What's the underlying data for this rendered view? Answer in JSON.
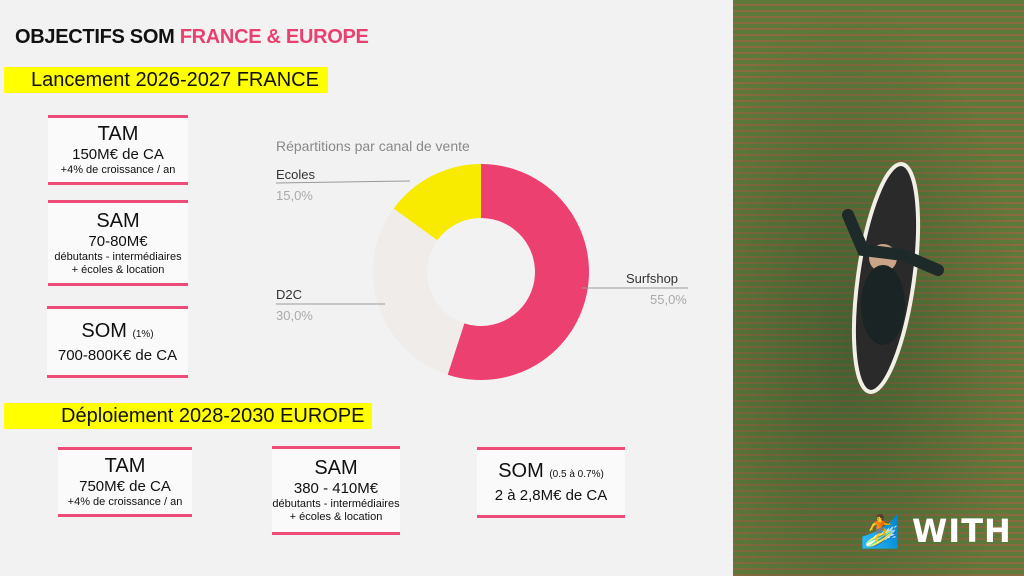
{
  "title": {
    "main": "OBJECTIFS SOM ",
    "accent": "FRANCE & EUROPE",
    "accent_color": "#e8416f"
  },
  "france": {
    "heading": "Lancement 2026-2027 FRANCE",
    "tam": {
      "title": "TAM",
      "value": "150M€ de CA",
      "sub": "+4% de croissance / an"
    },
    "sam": {
      "title": "SAM",
      "value": "70-80M€",
      "sub1": "débutants - intermédiaires",
      "sub2": "+ écoles & location"
    },
    "som": {
      "title": "SOM",
      "note": "(1%)",
      "value": "700-800K€ de CA"
    }
  },
  "europe": {
    "heading": "Déploiement 2028-2030 EUROPE",
    "tam": {
      "title": "TAM",
      "value": "750M€ de CA",
      "sub": "+4% de croissance / an"
    },
    "sam": {
      "title": "SAM",
      "value": "380 - 410M€",
      "sub1": "débutants - intermédiaires",
      "sub2": "+ écoles & location"
    },
    "som": {
      "title": "SOM",
      "note": "(0.5 à 0.7%)",
      "value": "2 à 2,8M€ de CA"
    }
  },
  "chart_data": {
    "type": "pie",
    "title": "Répartitions par canal de vente",
    "donut": true,
    "slices": [
      {
        "label": "Surfshop",
        "value": 55.0,
        "display": "55,0%",
        "color": "#ec4170"
      },
      {
        "label": "D2C",
        "value": 30.0,
        "display": "30,0%",
        "color": "#efecea"
      },
      {
        "label": "Ecoles",
        "value": 15.0,
        "display": "15,0%",
        "color": "#f8eb00"
      }
    ]
  },
  "brand": {
    "logo": "WITH",
    "icon": "surfer-emoji"
  }
}
